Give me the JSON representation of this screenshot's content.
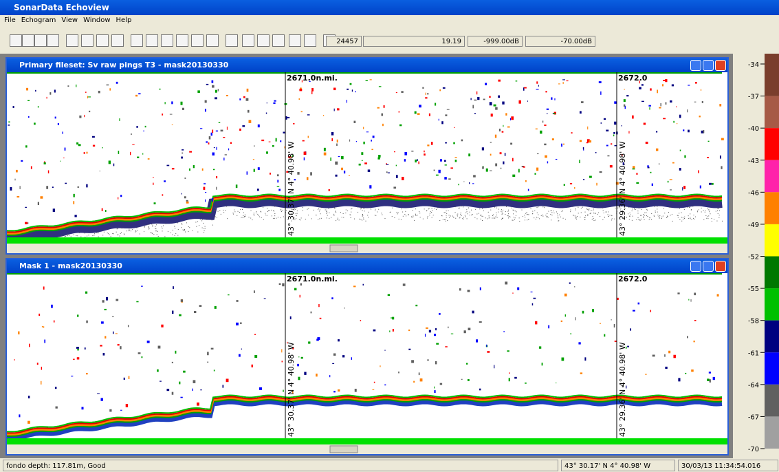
{
  "app_title": "SonarData Echoview",
  "menu": [
    "File",
    "Echogram",
    "View",
    "Window",
    "Help"
  ],
  "toolbar_fields": [
    "24457",
    "19.19",
    "-999.00dB",
    "-70.00dB"
  ],
  "windows": [
    {
      "title": "Primary fileset: Sv raw pings T3 - mask20130330",
      "markers": [
        "2671.0n.mi.",
        "2672.0"
      ],
      "positions": [
        "43° 30.37' N 4° 40.98' W",
        "43° 29.36' N 4° 40.98' W"
      ]
    },
    {
      "title": "Mask 1 - mask20130330",
      "markers": [
        "2671.0n.mi.",
        "2672.0"
      ],
      "positions": [
        "43° 30.37' N 4° 40.98' W",
        "43° 29.36' N 4° 40.98' W"
      ]
    }
  ],
  "color_scale": {
    "labels": [
      -34,
      -37,
      -40,
      -43,
      -46,
      -49,
      -52,
      -55,
      -58,
      -61,
      -64,
      -67,
      -70
    ],
    "colors": [
      "#7a3e2c",
      "#a65a46",
      "#ff0000",
      "#ff22aa",
      "#ff8000",
      "#ffff00",
      "#007800",
      "#00c000",
      "#000080",
      "#0000ff",
      "#606060",
      "#a0a0a0"
    ]
  },
  "status": {
    "left": "fondo depth: 117.81m, Good",
    "position": "43° 30.17' N 4° 40.98' W",
    "time": "30/03/13 11:34:54.016"
  }
}
